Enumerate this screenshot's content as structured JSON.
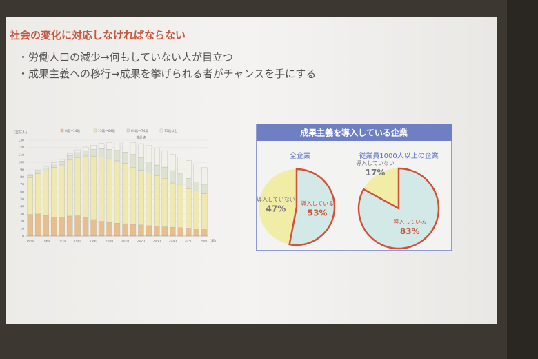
{
  "slide": {
    "title": "社会の変化に対応しなければならない",
    "bullets": [
      "・労働人口の減少→何もしていない人が目立つ",
      "・成果主義への移行→成果を挙げられる者がチャンスを手にする"
    ],
    "panel_title": "成果主義を導入している企業"
  },
  "chart_data": [
    {
      "type": "bar",
      "stacked": true,
      "y_label": "(百万人)",
      "x_label": "(年)",
      "annotation": "推計値",
      "categories": [
        "1950",
        null,
        "1960",
        null,
        "1970",
        null,
        "1980",
        null,
        "1990",
        null,
        "2000",
        null,
        "2010",
        null,
        "2020",
        null,
        "2030",
        null,
        "2040",
        null,
        "2050",
        null,
        "2060"
      ],
      "series": [
        {
          "name": "0歳～14歳",
          "color": "#e6bf8c",
          "values": [
            29.4,
            30.0,
            28.1,
            25.5,
            24.8,
            27.2,
            27.5,
            26.0,
            22.5,
            20.0,
            18.5,
            17.6,
            16.8,
            15.9,
            15.1,
            14.1,
            13.2,
            12.5,
            12.0,
            11.4,
            10.8,
            10.1,
            9.5
          ]
        },
        {
          "name": "15歳～64歳",
          "color": "#efe9b0",
          "values": [
            49.7,
            54.7,
            60.0,
            67.4,
            71.6,
            75.8,
            78.8,
            82.5,
            85.9,
            87.3,
            86.2,
            84.4,
            81.7,
            77.3,
            74.1,
            71.7,
            68.8,
            65.8,
            60.0,
            56.4,
            53.6,
            51.0,
            47.9
          ]
        },
        {
          "name": "65歳～74歳",
          "color": "#dde3d0",
          "values": [
            3.1,
            3.4,
            3.9,
            4.5,
            5.2,
            6.0,
            6.9,
            7.4,
            8.9,
            11.1,
            13.0,
            14.1,
            15.2,
            17.5,
            17.4,
            15.0,
            14.3,
            15.2,
            16.8,
            16.5,
            14.0,
            12.5,
            12.0
          ]
        },
        {
          "name": "75歳以上",
          "color": "#f1f1ea",
          "values": [
            1.1,
            1.4,
            1.6,
            1.9,
            2.2,
            2.8,
            3.7,
            4.7,
            6.0,
            7.2,
            9.0,
            11.6,
            14.1,
            16.3,
            18.7,
            21.8,
            22.9,
            22.4,
            22.4,
            22.7,
            24.2,
            24.5,
            23.4
          ]
        }
      ],
      "ylim": [
        0,
        130
      ],
      "yticks": [
        0,
        10,
        20,
        30,
        40,
        50,
        60,
        70,
        80,
        90,
        100,
        110,
        120,
        130
      ],
      "grid": true
    },
    {
      "type": "pie",
      "title": "全企業",
      "categories": [
        "導入していない",
        "導入している"
      ],
      "values": [
        47,
        53
      ],
      "value_labels": [
        "47%",
        "53%"
      ],
      "colors": [
        "#f1eda6",
        "#d3e9e8"
      ]
    },
    {
      "type": "pie",
      "title": "従業員1000人以上の企業",
      "categories": [
        "導入していない",
        "導入している"
      ],
      "values": [
        17,
        83
      ],
      "value_labels": [
        "17%",
        "83%"
      ],
      "colors": [
        "#f1eda6",
        "#d3e9e8"
      ]
    }
  ]
}
